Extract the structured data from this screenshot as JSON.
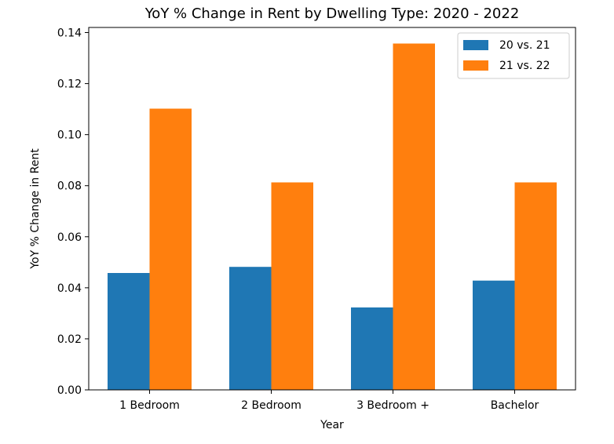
{
  "chart_data": {
    "type": "bar",
    "title": "YoY % Change in Rent by Dwelling Type: 2020 - 2022",
    "xlabel": "Year",
    "ylabel": "YoY % Change in Rent",
    "categories": [
      "1 Bedroom",
      "2 Bedroom",
      "3 Bedroom +",
      "Bachelor"
    ],
    "series": [
      {
        "name": "20 vs. 21",
        "color": "#1f77b4",
        "values": [
          0.0458,
          0.0482,
          0.0323,
          0.0428
        ]
      },
      {
        "name": "21 vs. 22",
        "color": "#ff7f0e",
        "values": [
          0.1102,
          0.0813,
          0.1357,
          0.0813
        ]
      }
    ],
    "ylim": [
      0,
      0.142
    ],
    "yticks": [
      "0.00",
      "0.02",
      "0.04",
      "0.06",
      "0.08",
      "0.10",
      "0.12",
      "0.14"
    ],
    "grid": false,
    "legend_position": "top-right"
  }
}
